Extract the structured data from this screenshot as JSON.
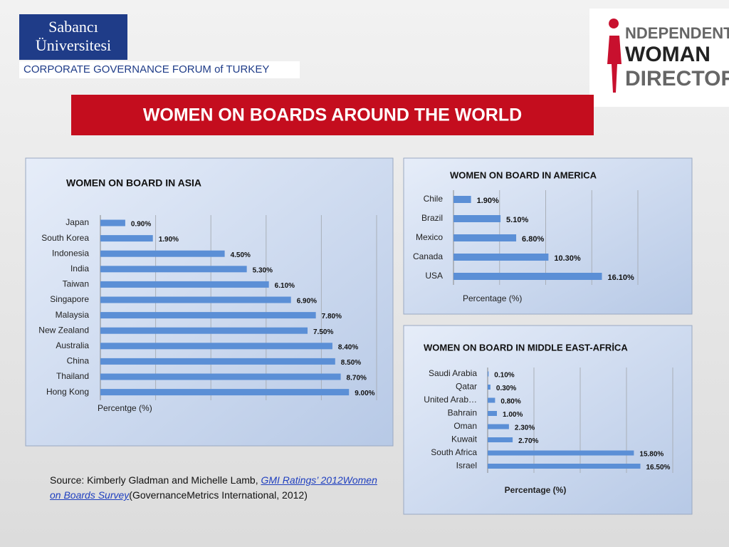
{
  "header": {
    "title": "WOMEN ON  BOARDS AROUND THE WORLD",
    "university_line1": "Sabancı",
    "university_line2": "Üniversitesi",
    "forum": "CORPORATE GOVERNANCE FORUM of TURKEY",
    "logo_line1": "NDEPENDENT",
    "logo_line2": "WOMAN",
    "logo_line3": "DIRECTORS"
  },
  "source": {
    "prefix": "Source: Kimberly Gladman and Michelle Lamb, ",
    "link": "GMI Ratings’ 2012Women on Boards Survey",
    "suffix": "(GovernanceMetrics International, 2012)"
  },
  "chart_data": [
    {
      "type": "bar",
      "title": "WOMEN ON BOARD IN ASIA",
      "x_label": "Percentge (%)",
      "categories": [
        "Japan",
        "South Korea",
        "Indonesia",
        "India",
        "Taiwan",
        "Singapore",
        "Malaysia",
        "New Zealand",
        "Australia",
        "China",
        "Thailand",
        "Hong Kong"
      ],
      "values": [
        0.9,
        1.9,
        4.5,
        5.3,
        6.1,
        6.9,
        7.8,
        7.5,
        8.4,
        8.5,
        8.7,
        9.0
      ],
      "value_labels": [
        "0.90%",
        "1.90%",
        "4.50%",
        "5.30%",
        "6.10%",
        "6.90%",
        "7.80%",
        "7.50%",
        "8.40%",
        "8.50%",
        "8.70%",
        "9.00%"
      ],
      "color": "#5b8fd6",
      "xlim": [
        0,
        10
      ],
      "xticks": [
        0,
        2,
        4,
        6,
        8,
        10
      ],
      "grid": true
    },
    {
      "type": "bar",
      "title": "WOMEN ON BOARD  IN AMERICA",
      "x_label": "Percentage (%)",
      "categories": [
        "Chile",
        "Brazil",
        "Mexico",
        "Canada",
        "USA"
      ],
      "values": [
        1.9,
        5.1,
        6.8,
        10.3,
        16.1
      ],
      "value_labels": [
        "1.90%",
        "5.10%",
        "6.80%",
        "10.30%",
        "16.10%"
      ],
      "color": "#5b8fd6",
      "xlim": [
        0,
        20
      ],
      "xticks": [
        0,
        5,
        10,
        15,
        20
      ],
      "grid": true
    },
    {
      "type": "bar",
      "title": "WOMEN ON  BOARD  IN MIDDLE EAST-AFRİCA",
      "x_label": "Percentage (%)",
      "categories": [
        "Saudi Arabia",
        "Qatar",
        "United Arab…",
        "Bahrain",
        "Oman",
        "Kuwait",
        "South Africa",
        "Israel"
      ],
      "values": [
        0.1,
        0.3,
        0.8,
        1.0,
        2.3,
        2.7,
        15.8,
        16.5
      ],
      "value_labels": [
        "0.10%",
        "0.30%",
        "0.80%",
        "1.00%",
        "2.30%",
        "2.70%",
        "15.80%",
        "16.50%"
      ],
      "color": "#5b8fd6",
      "xlim": [
        0,
        20
      ],
      "xticks": [
        0,
        5,
        10,
        15,
        20
      ],
      "grid": true
    }
  ]
}
